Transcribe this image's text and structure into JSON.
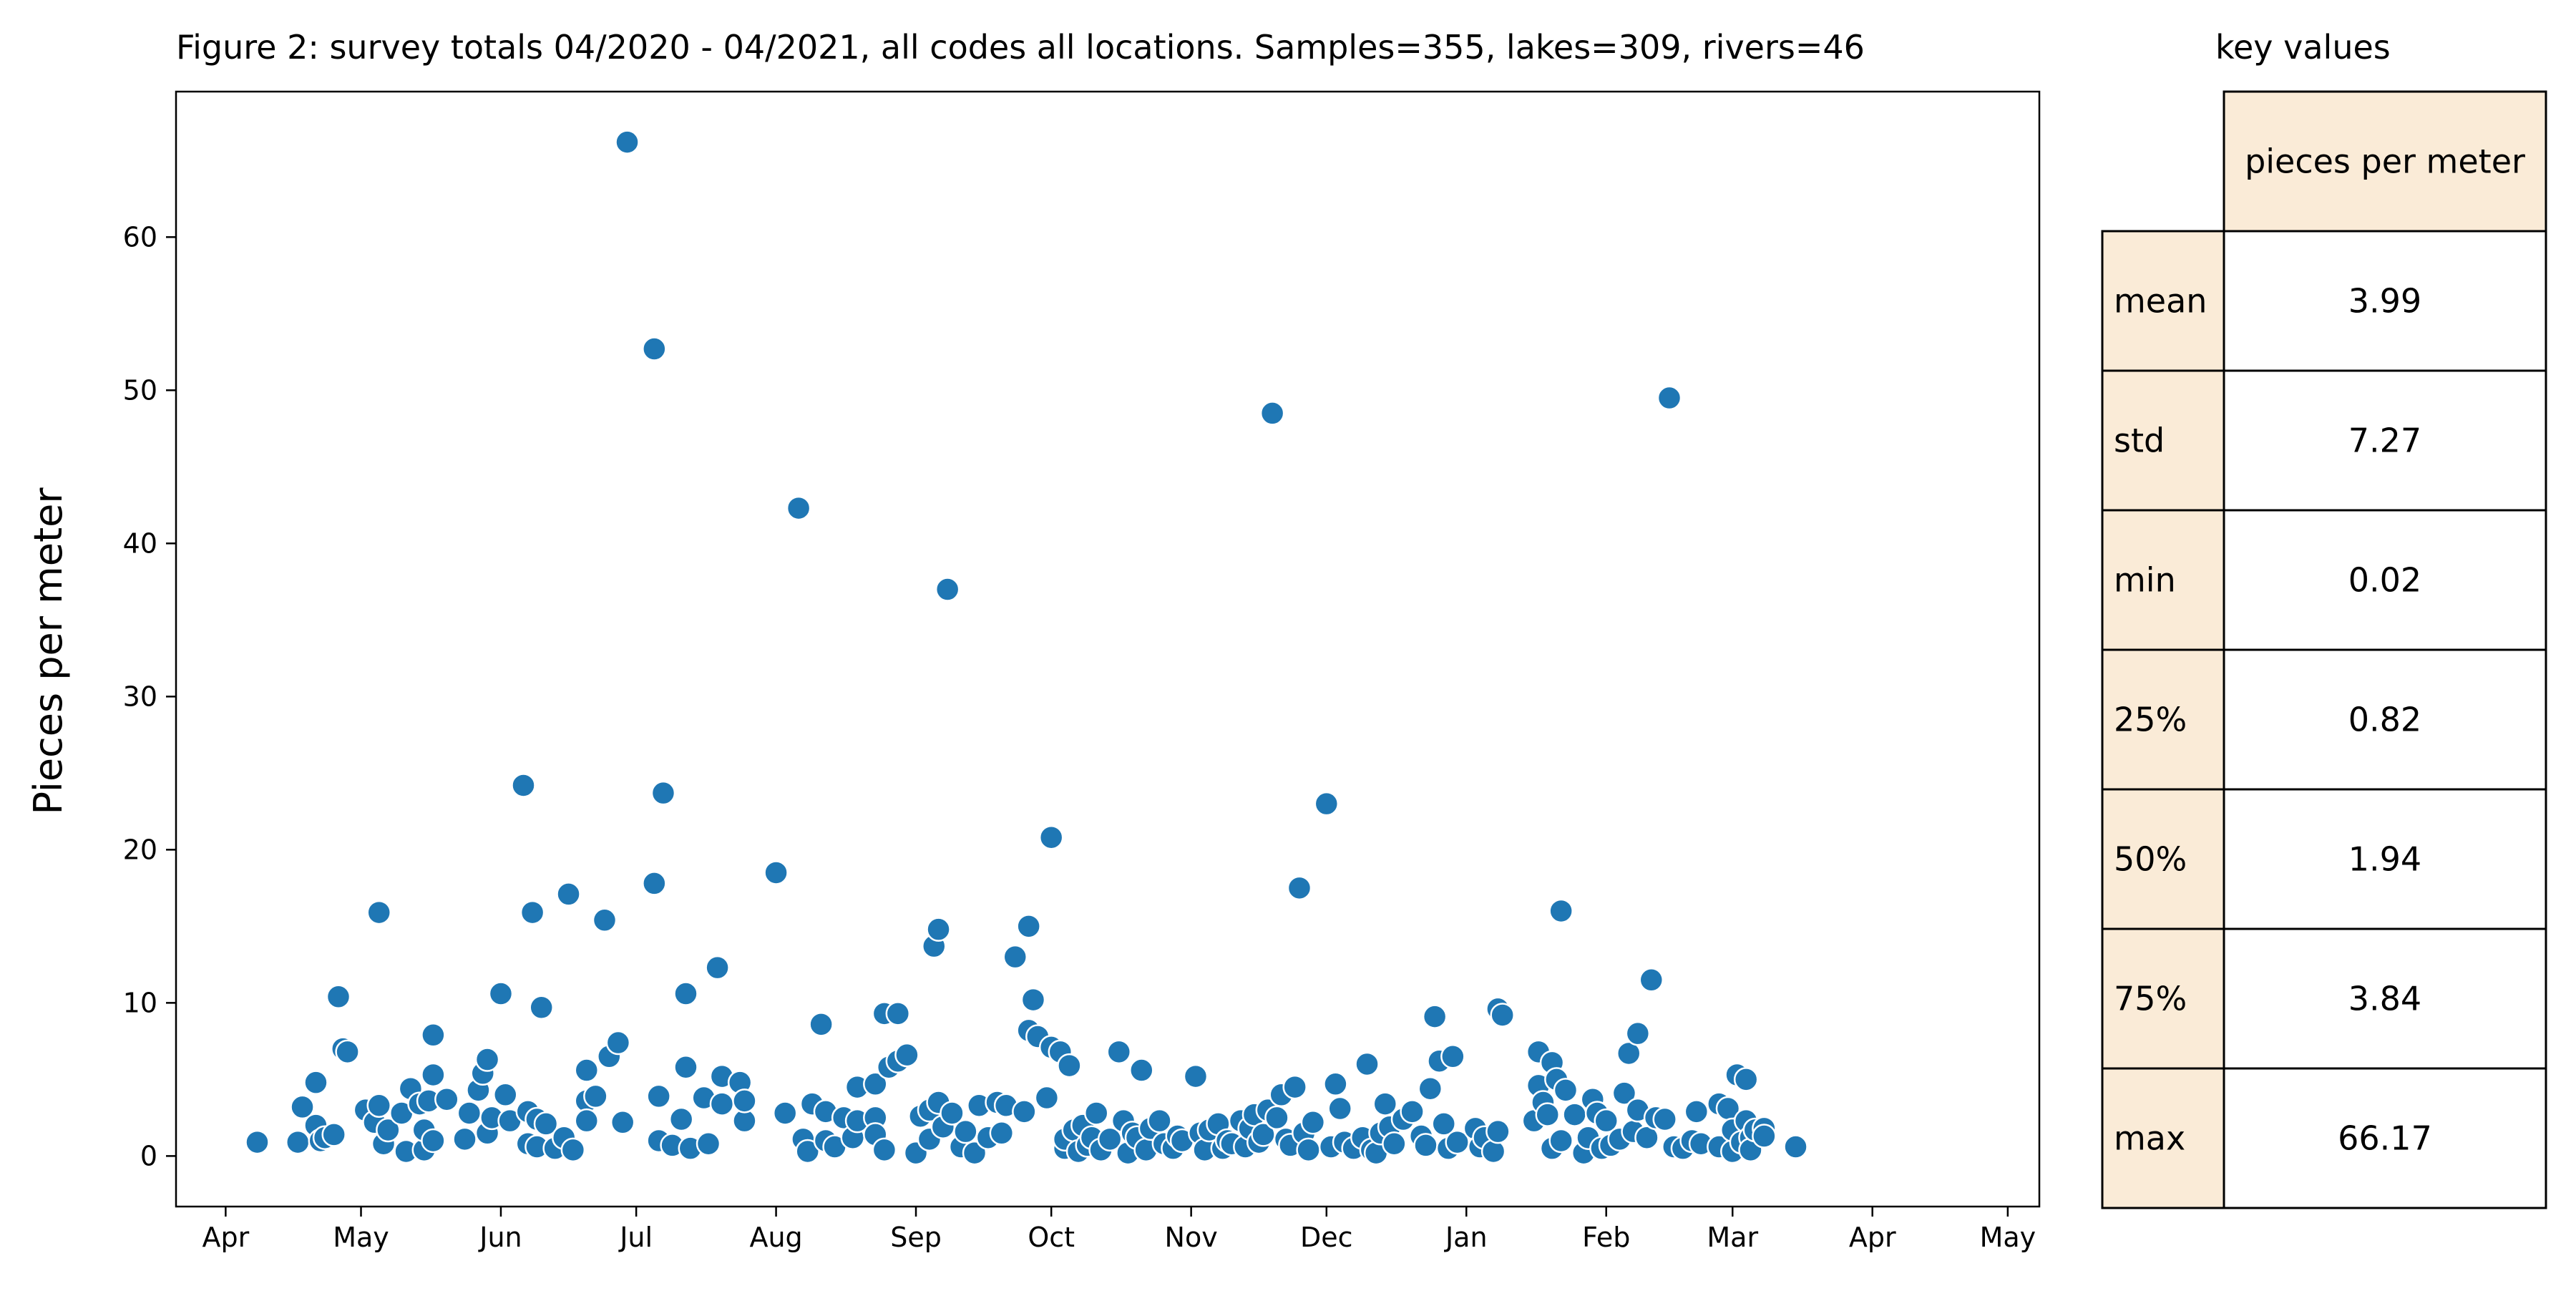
{
  "chart_data": {
    "type": "scatter",
    "title": "Figure 2: survey totals 04/2020 - 04/2021, all codes all locations. Samples=355, lakes=309, rivers=46",
    "xlabel": "",
    "ylabel": "Pieces per meter",
    "x_axis_type": "date",
    "xlim": [
      "2020-03-21",
      "2021-05-08"
    ],
    "ylim": [
      -3.3,
      69.5
    ],
    "x_ticks": [
      {
        "date": "2020-04-01",
        "label": "Apr"
      },
      {
        "date": "2020-05-01",
        "label": "May"
      },
      {
        "date": "2020-06-01",
        "label": "Jun"
      },
      {
        "date": "2020-07-01",
        "label": "Jul"
      },
      {
        "date": "2020-08-01",
        "label": "Aug"
      },
      {
        "date": "2020-09-01",
        "label": "Sep"
      },
      {
        "date": "2020-10-01",
        "label": "Oct"
      },
      {
        "date": "2020-11-01",
        "label": "Nov"
      },
      {
        "date": "2020-12-01",
        "label": "Dec"
      },
      {
        "date": "2021-01-01",
        "label": "Jan"
      },
      {
        "date": "2021-02-01",
        "label": "Feb"
      },
      {
        "date": "2021-03-01",
        "label": "Mar"
      },
      {
        "date": "2021-04-01",
        "label": "Apr"
      },
      {
        "date": "2021-05-01",
        "label": "May"
      }
    ],
    "y_ticks": [
      0,
      10,
      20,
      30,
      40,
      50,
      60
    ],
    "grid": false,
    "marker_color": "#1f77b4",
    "points": [
      [
        "2020-04-08",
        0.9
      ],
      [
        "2020-04-17",
        0.9
      ],
      [
        "2020-04-18",
        3.2
      ],
      [
        "2020-04-21",
        4.8
      ],
      [
        "2020-04-21",
        2.0
      ],
      [
        "2020-04-22",
        1.0
      ],
      [
        "2020-04-23",
        1.2
      ],
      [
        "2020-04-25",
        1.4
      ],
      [
        "2020-04-26",
        10.4
      ],
      [
        "2020-04-27",
        7.0
      ],
      [
        "2020-04-28",
        6.8
      ],
      [
        "2020-05-02",
        3.0
      ],
      [
        "2020-05-04",
        2.2
      ],
      [
        "2020-05-05",
        15.9
      ],
      [
        "2020-05-05",
        3.3
      ],
      [
        "2020-05-06",
        0.8
      ],
      [
        "2020-05-07",
        1.7
      ],
      [
        "2020-05-10",
        2.8
      ],
      [
        "2020-05-11",
        0.3
      ],
      [
        "2020-05-12",
        4.4
      ],
      [
        "2020-05-14",
        3.4
      ],
      [
        "2020-05-15",
        0.4
      ],
      [
        "2020-05-15",
        1.7
      ],
      [
        "2020-05-16",
        3.6
      ],
      [
        "2020-05-17",
        1.0
      ],
      [
        "2020-05-17",
        5.3
      ],
      [
        "2020-05-17",
        7.9
      ],
      [
        "2020-05-20",
        3.7
      ],
      [
        "2020-05-24",
        1.1
      ],
      [
        "2020-05-25",
        2.8
      ],
      [
        "2020-05-27",
        4.3
      ],
      [
        "2020-05-28",
        5.4
      ],
      [
        "2020-05-29",
        1.5
      ],
      [
        "2020-05-29",
        6.3
      ],
      [
        "2020-05-30",
        2.5
      ],
      [
        "2020-06-01",
        10.6
      ],
      [
        "2020-06-02",
        4.0
      ],
      [
        "2020-06-03",
        2.3
      ],
      [
        "2020-06-06",
        24.2
      ],
      [
        "2020-06-07",
        0.8
      ],
      [
        "2020-06-07",
        2.9
      ],
      [
        "2020-06-08",
        15.9
      ],
      [
        "2020-06-09",
        2.4
      ],
      [
        "2020-06-09",
        0.6
      ],
      [
        "2020-06-10",
        9.7
      ],
      [
        "2020-06-11",
        2.1
      ],
      [
        "2020-06-13",
        0.5
      ],
      [
        "2020-06-15",
        1.2
      ],
      [
        "2020-06-16",
        17.1
      ],
      [
        "2020-06-17",
        0.4
      ],
      [
        "2020-06-20",
        5.6
      ],
      [
        "2020-06-20",
        3.6
      ],
      [
        "2020-06-20",
        2.3
      ],
      [
        "2020-06-22",
        3.9
      ],
      [
        "2020-06-24",
        15.4
      ],
      [
        "2020-06-25",
        6.5
      ],
      [
        "2020-06-27",
        7.4
      ],
      [
        "2020-06-29",
        66.2
      ],
      [
        "2020-06-28",
        2.2
      ],
      [
        "2020-07-05",
        52.7
      ],
      [
        "2020-07-05",
        17.8
      ],
      [
        "2020-07-06",
        1.0
      ],
      [
        "2020-07-06",
        3.9
      ],
      [
        "2020-07-07",
        23.7
      ],
      [
        "2020-07-09",
        0.7
      ],
      [
        "2020-07-11",
        2.4
      ],
      [
        "2020-07-12",
        5.8
      ],
      [
        "2020-07-12",
        10.6
      ],
      [
        "2020-07-13",
        0.5
      ],
      [
        "2020-07-16",
        3.8
      ],
      [
        "2020-07-17",
        0.8
      ],
      [
        "2020-07-19",
        12.3
      ],
      [
        "2020-07-20",
        5.2
      ],
      [
        "2020-07-20",
        3.4
      ],
      [
        "2020-07-24",
        4.8
      ],
      [
        "2020-07-25",
        2.3
      ],
      [
        "2020-07-25",
        3.6
      ],
      [
        "2020-08-01",
        18.5
      ],
      [
        "2020-08-03",
        2.8
      ],
      [
        "2020-08-06",
        42.3
      ],
      [
        "2020-08-07",
        1.1
      ],
      [
        "2020-08-08",
        0.3
      ],
      [
        "2020-08-09",
        3.4
      ],
      [
        "2020-08-11",
        8.6
      ],
      [
        "2020-08-12",
        1.0
      ],
      [
        "2020-08-12",
        2.9
      ],
      [
        "2020-08-14",
        0.6
      ],
      [
        "2020-08-16",
        2.5
      ],
      [
        "2020-08-18",
        1.2
      ],
      [
        "2020-08-19",
        4.5
      ],
      [
        "2020-08-19",
        2.3
      ],
      [
        "2020-08-23",
        4.7
      ],
      [
        "2020-08-23",
        2.5
      ],
      [
        "2020-08-23",
        1.4
      ],
      [
        "2020-08-25",
        9.3
      ],
      [
        "2020-08-25",
        0.4
      ],
      [
        "2020-08-26",
        5.8
      ],
      [
        "2020-08-28",
        9.3
      ],
      [
        "2020-08-28",
        6.2
      ],
      [
        "2020-08-30",
        6.6
      ],
      [
        "2020-09-01",
        0.2
      ],
      [
        "2020-09-02",
        2.6
      ],
      [
        "2020-09-04",
        1.1
      ],
      [
        "2020-09-04",
        3.0
      ],
      [
        "2020-09-05",
        13.7
      ],
      [
        "2020-09-06",
        14.8
      ],
      [
        "2020-09-06",
        3.5
      ],
      [
        "2020-09-07",
        1.9
      ],
      [
        "2020-09-08",
        37.0
      ],
      [
        "2020-09-09",
        2.8
      ],
      [
        "2020-09-11",
        0.6
      ],
      [
        "2020-09-12",
        1.6
      ],
      [
        "2020-09-14",
        0.2
      ],
      [
        "2020-09-15",
        3.3
      ],
      [
        "2020-09-17",
        1.2
      ],
      [
        "2020-09-19",
        3.5
      ],
      [
        "2020-09-20",
        1.5
      ],
      [
        "2020-09-21",
        3.3
      ],
      [
        "2020-09-23",
        13.0
      ],
      [
        "2020-09-25",
        2.9
      ],
      [
        "2020-09-26",
        8.2
      ],
      [
        "2020-09-26",
        15.0
      ],
      [
        "2020-09-27",
        10.2
      ],
      [
        "2020-09-28",
        7.8
      ],
      [
        "2020-09-30",
        3.8
      ],
      [
        "2020-10-01",
        20.8
      ],
      [
        "2020-10-01",
        7.1
      ],
      [
        "2020-10-03",
        6.8
      ],
      [
        "2020-10-04",
        0.5
      ],
      [
        "2020-10-04",
        1.1
      ],
      [
        "2020-10-05",
        5.9
      ],
      [
        "2020-10-06",
        1.7
      ],
      [
        "2020-10-07",
        0.3
      ],
      [
        "2020-10-08",
        2.0
      ],
      [
        "2020-10-09",
        0.7
      ],
      [
        "2020-10-10",
        1.2
      ],
      [
        "2020-10-11",
        2.8
      ],
      [
        "2020-10-12",
        0.4
      ],
      [
        "2020-10-14",
        1.1
      ],
      [
        "2020-10-16",
        6.8
      ],
      [
        "2020-10-17",
        2.3
      ],
      [
        "2020-10-18",
        0.2
      ],
      [
        "2020-10-19",
        1.5
      ],
      [
        "2020-10-20",
        1.2
      ],
      [
        "2020-10-21",
        5.6
      ],
      [
        "2020-10-22",
        0.4
      ],
      [
        "2020-10-23",
        1.8
      ],
      [
        "2020-10-25",
        2.3
      ],
      [
        "2020-10-26",
        0.8
      ],
      [
        "2020-10-28",
        0.5
      ],
      [
        "2020-10-29",
        1.3
      ],
      [
        "2020-10-30",
        1.0
      ],
      [
        "2020-11-02",
        5.2
      ],
      [
        "2020-11-03",
        1.5
      ],
      [
        "2020-11-04",
        0.4
      ],
      [
        "2020-11-05",
        1.7
      ],
      [
        "2020-11-07",
        2.1
      ],
      [
        "2020-11-08",
        0.5
      ],
      [
        "2020-11-09",
        1.0
      ],
      [
        "2020-11-10",
        0.8
      ],
      [
        "2020-11-12",
        2.3
      ],
      [
        "2020-11-13",
        0.6
      ],
      [
        "2020-11-14",
        1.8
      ],
      [
        "2020-11-15",
        2.7
      ],
      [
        "2020-11-16",
        0.9
      ],
      [
        "2020-11-17",
        1.4
      ],
      [
        "2020-11-18",
        3.0
      ],
      [
        "2020-11-19",
        48.5
      ],
      [
        "2020-11-20",
        2.5
      ],
      [
        "2020-11-21",
        4.0
      ],
      [
        "2020-11-22",
        1.1
      ],
      [
        "2020-11-23",
        0.7
      ],
      [
        "2020-11-24",
        4.5
      ],
      [
        "2020-11-25",
        17.5
      ],
      [
        "2020-11-26",
        1.5
      ],
      [
        "2020-11-27",
        0.4
      ],
      [
        "2020-11-28",
        2.2
      ],
      [
        "2020-12-01",
        23.0
      ],
      [
        "2020-12-02",
        0.6
      ],
      [
        "2020-12-03",
        4.7
      ],
      [
        "2020-12-04",
        3.1
      ],
      [
        "2020-12-05",
        0.9
      ],
      [
        "2020-12-07",
        0.5
      ],
      [
        "2020-12-09",
        1.2
      ],
      [
        "2020-12-10",
        6.0
      ],
      [
        "2020-12-11",
        0.4
      ],
      [
        "2020-12-12",
        0.2
      ],
      [
        "2020-12-13",
        1.5
      ],
      [
        "2020-12-14",
        3.4
      ],
      [
        "2020-12-15",
        1.9
      ],
      [
        "2020-12-16",
        0.8
      ],
      [
        "2020-12-18",
        2.4
      ],
      [
        "2020-12-20",
        2.9
      ],
      [
        "2020-12-22",
        1.3
      ],
      [
        "2020-12-23",
        0.7
      ],
      [
        "2020-12-24",
        4.4
      ],
      [
        "2020-12-25",
        9.1
      ],
      [
        "2020-12-26",
        6.2
      ],
      [
        "2020-12-27",
        2.1
      ],
      [
        "2020-12-28",
        0.5
      ],
      [
        "2020-12-29",
        6.5
      ],
      [
        "2020-12-30",
        0.9
      ],
      [
        "2021-01-03",
        1.8
      ],
      [
        "2021-01-04",
        0.6
      ],
      [
        "2021-01-05",
        1.2
      ],
      [
        "2021-01-07",
        0.3
      ],
      [
        "2021-01-08",
        1.6
      ],
      [
        "2021-01-08",
        9.6
      ],
      [
        "2021-01-09",
        9.2
      ],
      [
        "2021-01-16",
        2.3
      ],
      [
        "2021-01-17",
        6.8
      ],
      [
        "2021-01-17",
        4.6
      ],
      [
        "2021-01-18",
        3.5
      ],
      [
        "2021-01-19",
        2.7
      ],
      [
        "2021-01-20",
        6.1
      ],
      [
        "2021-01-20",
        0.5
      ],
      [
        "2021-01-21",
        5.0
      ],
      [
        "2021-01-22",
        1.0
      ],
      [
        "2021-01-22",
        16.0
      ],
      [
        "2021-01-23",
        4.3
      ],
      [
        "2021-01-25",
        2.7
      ],
      [
        "2021-01-27",
        0.2
      ],
      [
        "2021-01-28",
        1.2
      ],
      [
        "2021-01-29",
        3.7
      ],
      [
        "2021-01-30",
        2.8
      ],
      [
        "2021-01-31",
        0.5
      ],
      [
        "2021-02-01",
        2.3
      ],
      [
        "2021-02-02",
        0.7
      ],
      [
        "2021-02-04",
        1.1
      ],
      [
        "2021-02-05",
        4.1
      ],
      [
        "2021-02-06",
        6.7
      ],
      [
        "2021-02-07",
        1.6
      ],
      [
        "2021-02-08",
        8.0
      ],
      [
        "2021-02-08",
        3.0
      ],
      [
        "2021-02-10",
        1.2
      ],
      [
        "2021-02-11",
        11.5
      ],
      [
        "2021-02-12",
        2.5
      ],
      [
        "2021-02-14",
        2.4
      ],
      [
        "2021-02-15",
        49.5
      ],
      [
        "2021-02-16",
        0.6
      ],
      [
        "2021-02-18",
        0.5
      ],
      [
        "2021-02-20",
        1.0
      ],
      [
        "2021-02-21",
        2.9
      ],
      [
        "2021-02-22",
        0.8
      ],
      [
        "2021-02-26",
        3.4
      ],
      [
        "2021-02-26",
        0.6
      ],
      [
        "2021-02-28",
        3.1
      ],
      [
        "2021-03-01",
        0.3
      ],
      [
        "2021-03-01",
        1.7
      ],
      [
        "2021-03-02",
        5.3
      ],
      [
        "2021-03-03",
        0.9
      ],
      [
        "2021-03-04",
        5.0
      ],
      [
        "2021-03-04",
        2.3
      ],
      [
        "2021-03-05",
        1.2
      ],
      [
        "2021-03-05",
        0.4
      ],
      [
        "2021-03-06",
        1.7
      ],
      [
        "2021-03-08",
        1.8
      ],
      [
        "2021-03-08",
        1.3
      ],
      [
        "2021-03-15",
        0.6
      ]
    ],
    "table": {
      "title": "key values",
      "column_header": "pieces per meter",
      "rows": [
        {
          "label": "mean",
          "value": "3.99"
        },
        {
          "label": "std",
          "value": "7.27"
        },
        {
          "label": "min",
          "value": "0.02"
        },
        {
          "label": "25%",
          "value": "0.82"
        },
        {
          "label": "50%",
          "value": "1.94"
        },
        {
          "label": "75%",
          "value": "3.84"
        },
        {
          "label": "max",
          "value": "66.17"
        }
      ],
      "header_fill": "#faebd7",
      "cell_fill": "#ffffff"
    }
  }
}
